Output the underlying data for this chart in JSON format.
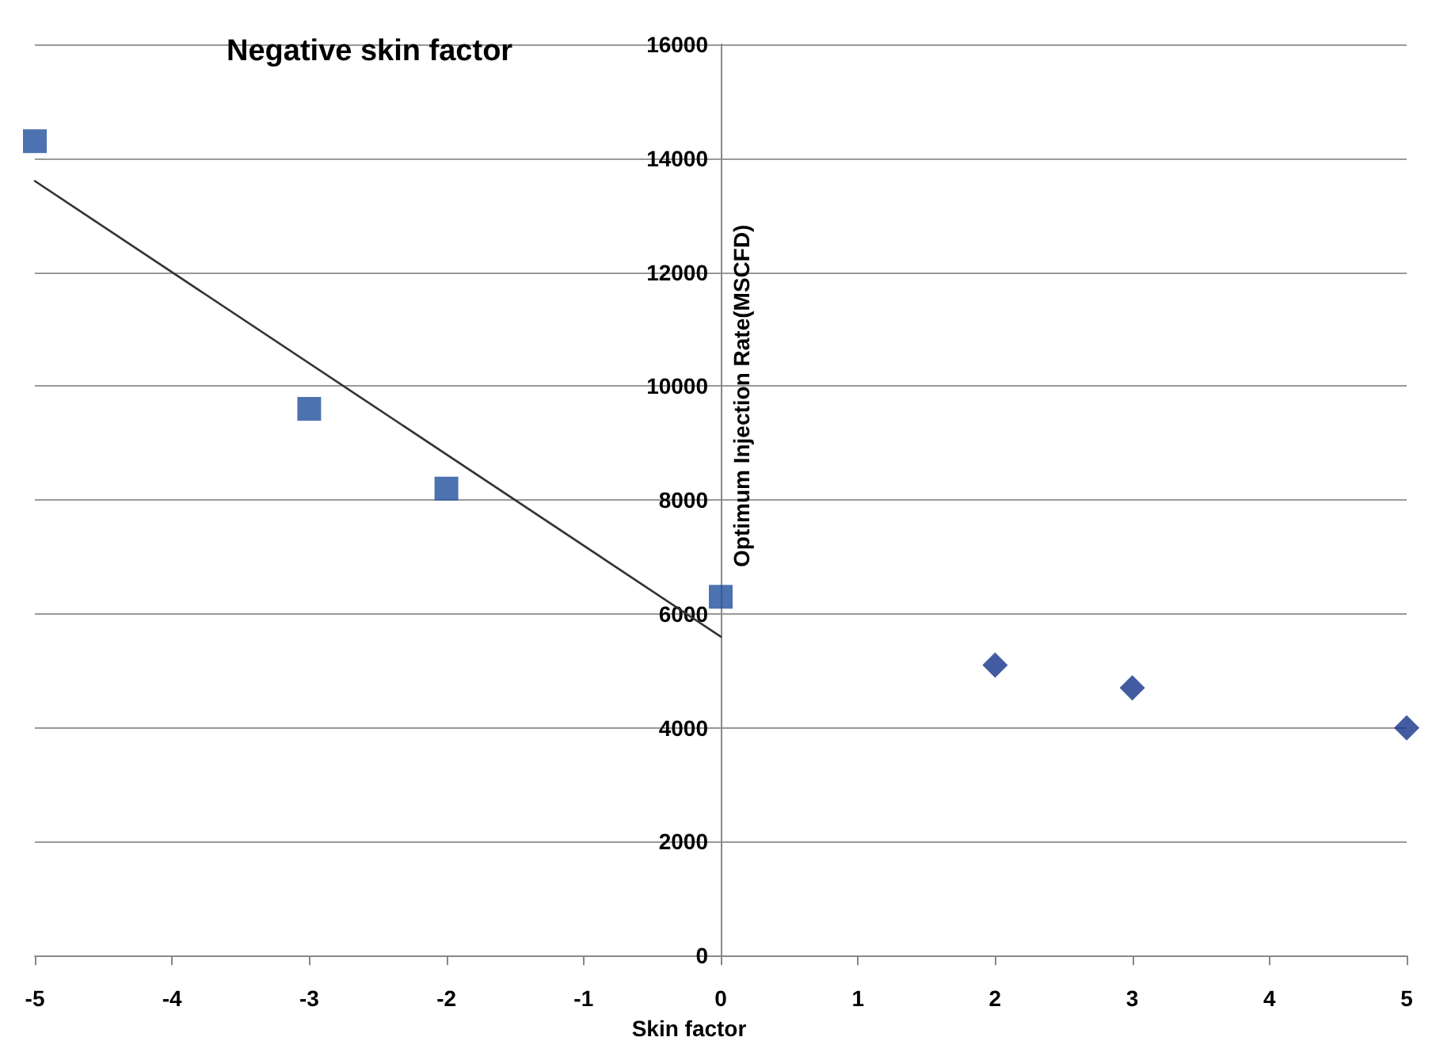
{
  "chart_data": {
    "type": "scatter",
    "title": "Negative skin factor",
    "xlabel": "Skin factor",
    "ylabel": "Optimum Injection Rate(MSCFD)",
    "series": [
      {
        "marker": "square",
        "color": "#1f4f9c",
        "x": [
          -5,
          -3,
          -2,
          0
        ],
        "values": [
          14300,
          9600,
          8200,
          6300
        ]
      },
      {
        "marker": "diamond",
        "color": "#14328a",
        "x": [
          2,
          3,
          5
        ],
        "values": [
          5100,
          4700,
          4000
        ]
      },
      {
        "type": "line",
        "marker": "none",
        "color": "#333333",
        "x": [
          -5,
          0
        ],
        "values": [
          13600,
          5600
        ]
      }
    ],
    "xlim": [
      -5,
      5
    ],
    "xticks": [
      -5,
      -4,
      -3,
      -2,
      -1,
      0,
      1,
      2,
      3,
      4,
      5
    ],
    "ylim": [
      0,
      16000
    ],
    "yticks": [
      0,
      2000,
      4000,
      6000,
      8000,
      10000,
      12000,
      14000,
      16000
    ],
    "grid": "y"
  }
}
